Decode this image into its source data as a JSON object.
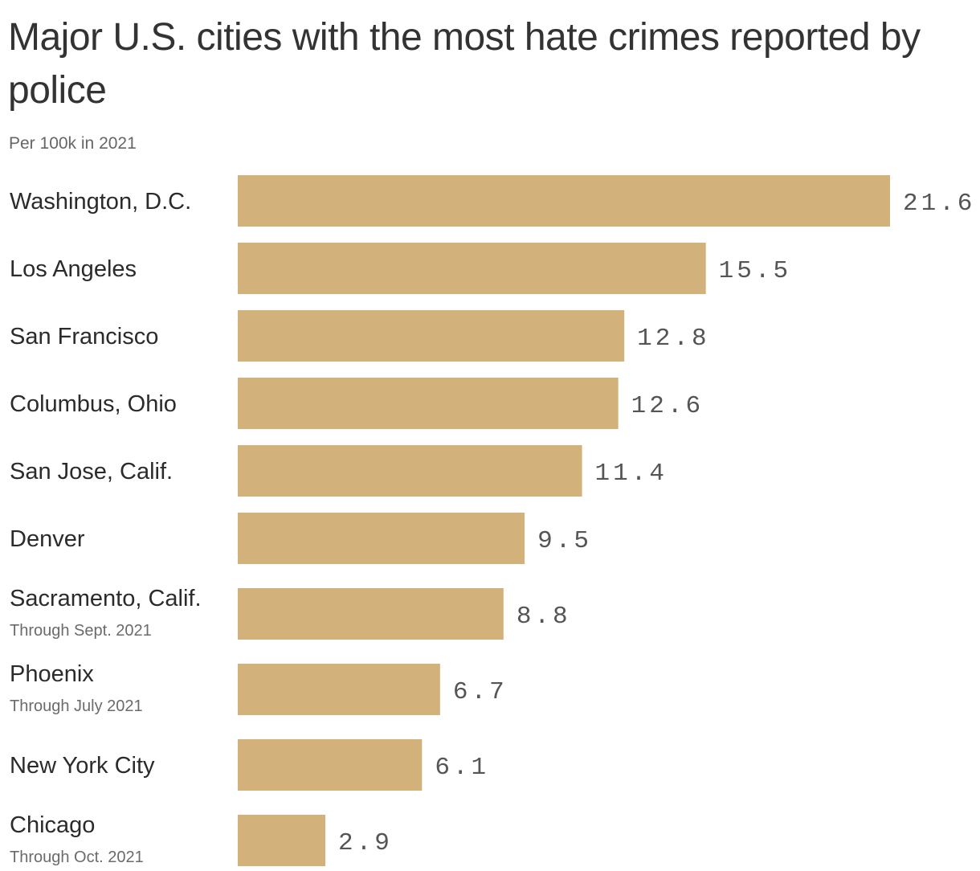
{
  "chart_data": {
    "type": "bar",
    "orientation": "horizontal",
    "title": "Major U.S. cities with the most hate crimes reported by police",
    "subtitle": "Per 100k in 2021",
    "xlabel": "",
    "ylabel": "",
    "xlim": [
      0,
      21.6
    ],
    "grid": false,
    "bar_color": "#d2b27a",
    "categories": [
      {
        "label": "Washington, D.C.",
        "note": "",
        "value": 21.6,
        "value_label": "21.6"
      },
      {
        "label": "Los Angeles",
        "note": "",
        "value": 15.5,
        "value_label": "15.5"
      },
      {
        "label": "San Francisco",
        "note": "",
        "value": 12.8,
        "value_label": "12.8"
      },
      {
        "label": "Columbus, Ohio",
        "note": "",
        "value": 12.6,
        "value_label": "12.6"
      },
      {
        "label": "San Jose, Calif.",
        "note": "",
        "value": 11.4,
        "value_label": "11.4"
      },
      {
        "label": "Denver",
        "note": "",
        "value": 9.5,
        "value_label": "9.5"
      },
      {
        "label": "Sacramento, Calif.",
        "note": "Through Sept. 2021",
        "value": 8.8,
        "value_label": "8.8"
      },
      {
        "label": "Phoenix",
        "note": "Through July 2021",
        "value": 6.7,
        "value_label": "6.7"
      },
      {
        "label": "New York City",
        "note": "",
        "value": 6.1,
        "value_label": "6.1"
      },
      {
        "label": "Chicago",
        "note": "Through Oct. 2021",
        "value": 2.9,
        "value_label": "2.9"
      }
    ]
  }
}
